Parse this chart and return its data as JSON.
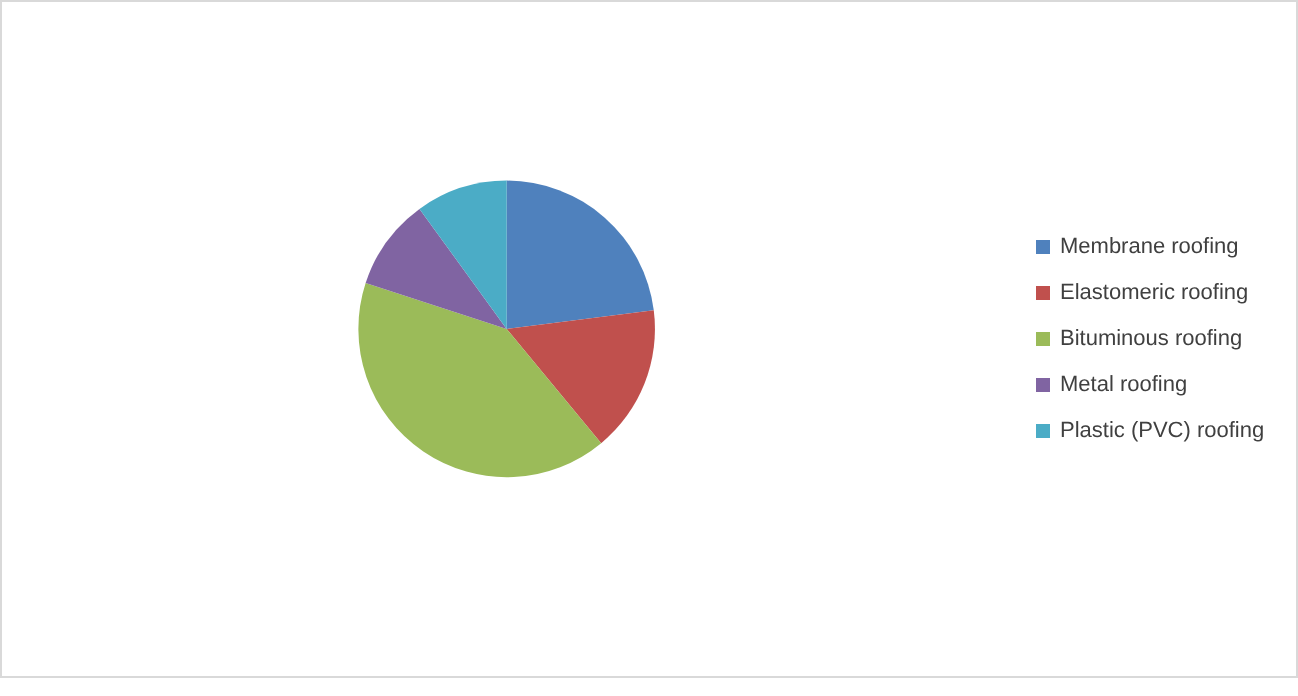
{
  "chart_data": {
    "type": "pie",
    "categories": [
      "Membrane roofing",
      "Elastomeric roofing",
      "Bituminous roofing",
      "Metal roofing",
      "Plastic (PVC) roofing"
    ],
    "values": [
      23,
      16,
      41,
      10,
      10
    ],
    "colors": [
      "#4f81bd",
      "#c0504d",
      "#9bbb59",
      "#8064a2",
      "#4bacc6"
    ],
    "legend": "right"
  }
}
